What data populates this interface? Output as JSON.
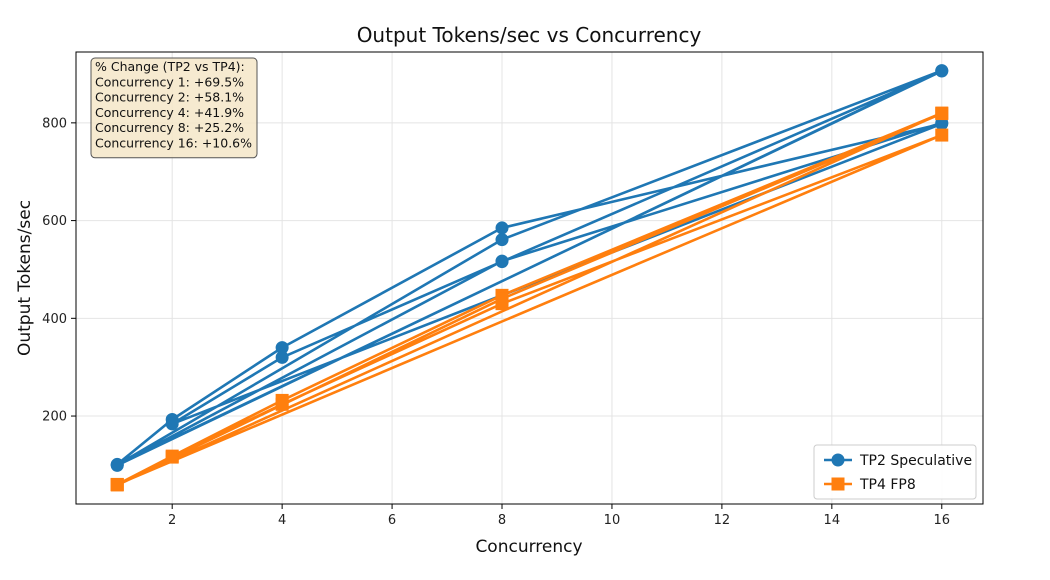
{
  "chart_data": {
    "type": "line",
    "title": "Output Tokens/sec vs Concurrency",
    "xlabel": "Concurrency",
    "ylabel": "Output Tokens/sec",
    "xlim": [
      0.25,
      16.75
    ],
    "ylim": [
      20,
      945
    ],
    "xticks": [
      2,
      4,
      6,
      8,
      10,
      12,
      14,
      16
    ],
    "yticks": [
      200,
      400,
      600,
      800
    ],
    "grid": true,
    "legend_position": "lower-right",
    "series": [
      {
        "name": "TP2 Speculative",
        "color": "#1f77b4",
        "marker": "circle",
        "points": [
          [
            1,
            101
          ],
          [
            2,
            193
          ],
          [
            4,
            340
          ],
          [
            8,
            585
          ],
          [
            16,
            798
          ],
          [
            2,
            184
          ],
          [
            4,
            320
          ],
          [
            8,
            516
          ],
          [
            16,
            906
          ],
          [
            1,
            100
          ],
          [
            8,
            561
          ],
          [
            16,
            907
          ],
          [
            1,
            99
          ],
          [
            8,
            517
          ],
          [
            16,
            800
          ]
        ]
      },
      {
        "name": "TP4 FP8",
        "color": "#ff7f0e",
        "marker": "square",
        "points": [
          [
            1,
            60
          ],
          [
            2,
            118
          ],
          [
            4,
            232
          ],
          [
            8,
            447
          ],
          [
            16,
            820
          ],
          [
            1,
            59
          ],
          [
            2,
            116
          ],
          [
            4,
            224
          ],
          [
            8,
            430
          ],
          [
            16,
            775
          ],
          [
            1,
            60
          ],
          [
            8,
            440
          ],
          [
            16,
            819
          ]
        ]
      }
    ],
    "annotation_lines": [
      "% Change (TP2 vs TP4):",
      "Concurrency 1: +69.5%",
      "Concurrency 2: +58.1%",
      "Concurrency 4: +41.9%",
      "Concurrency 8: +25.2%",
      "Concurrency 16: +10.6%"
    ],
    "annotation_bg": "#f5e6c8"
  }
}
